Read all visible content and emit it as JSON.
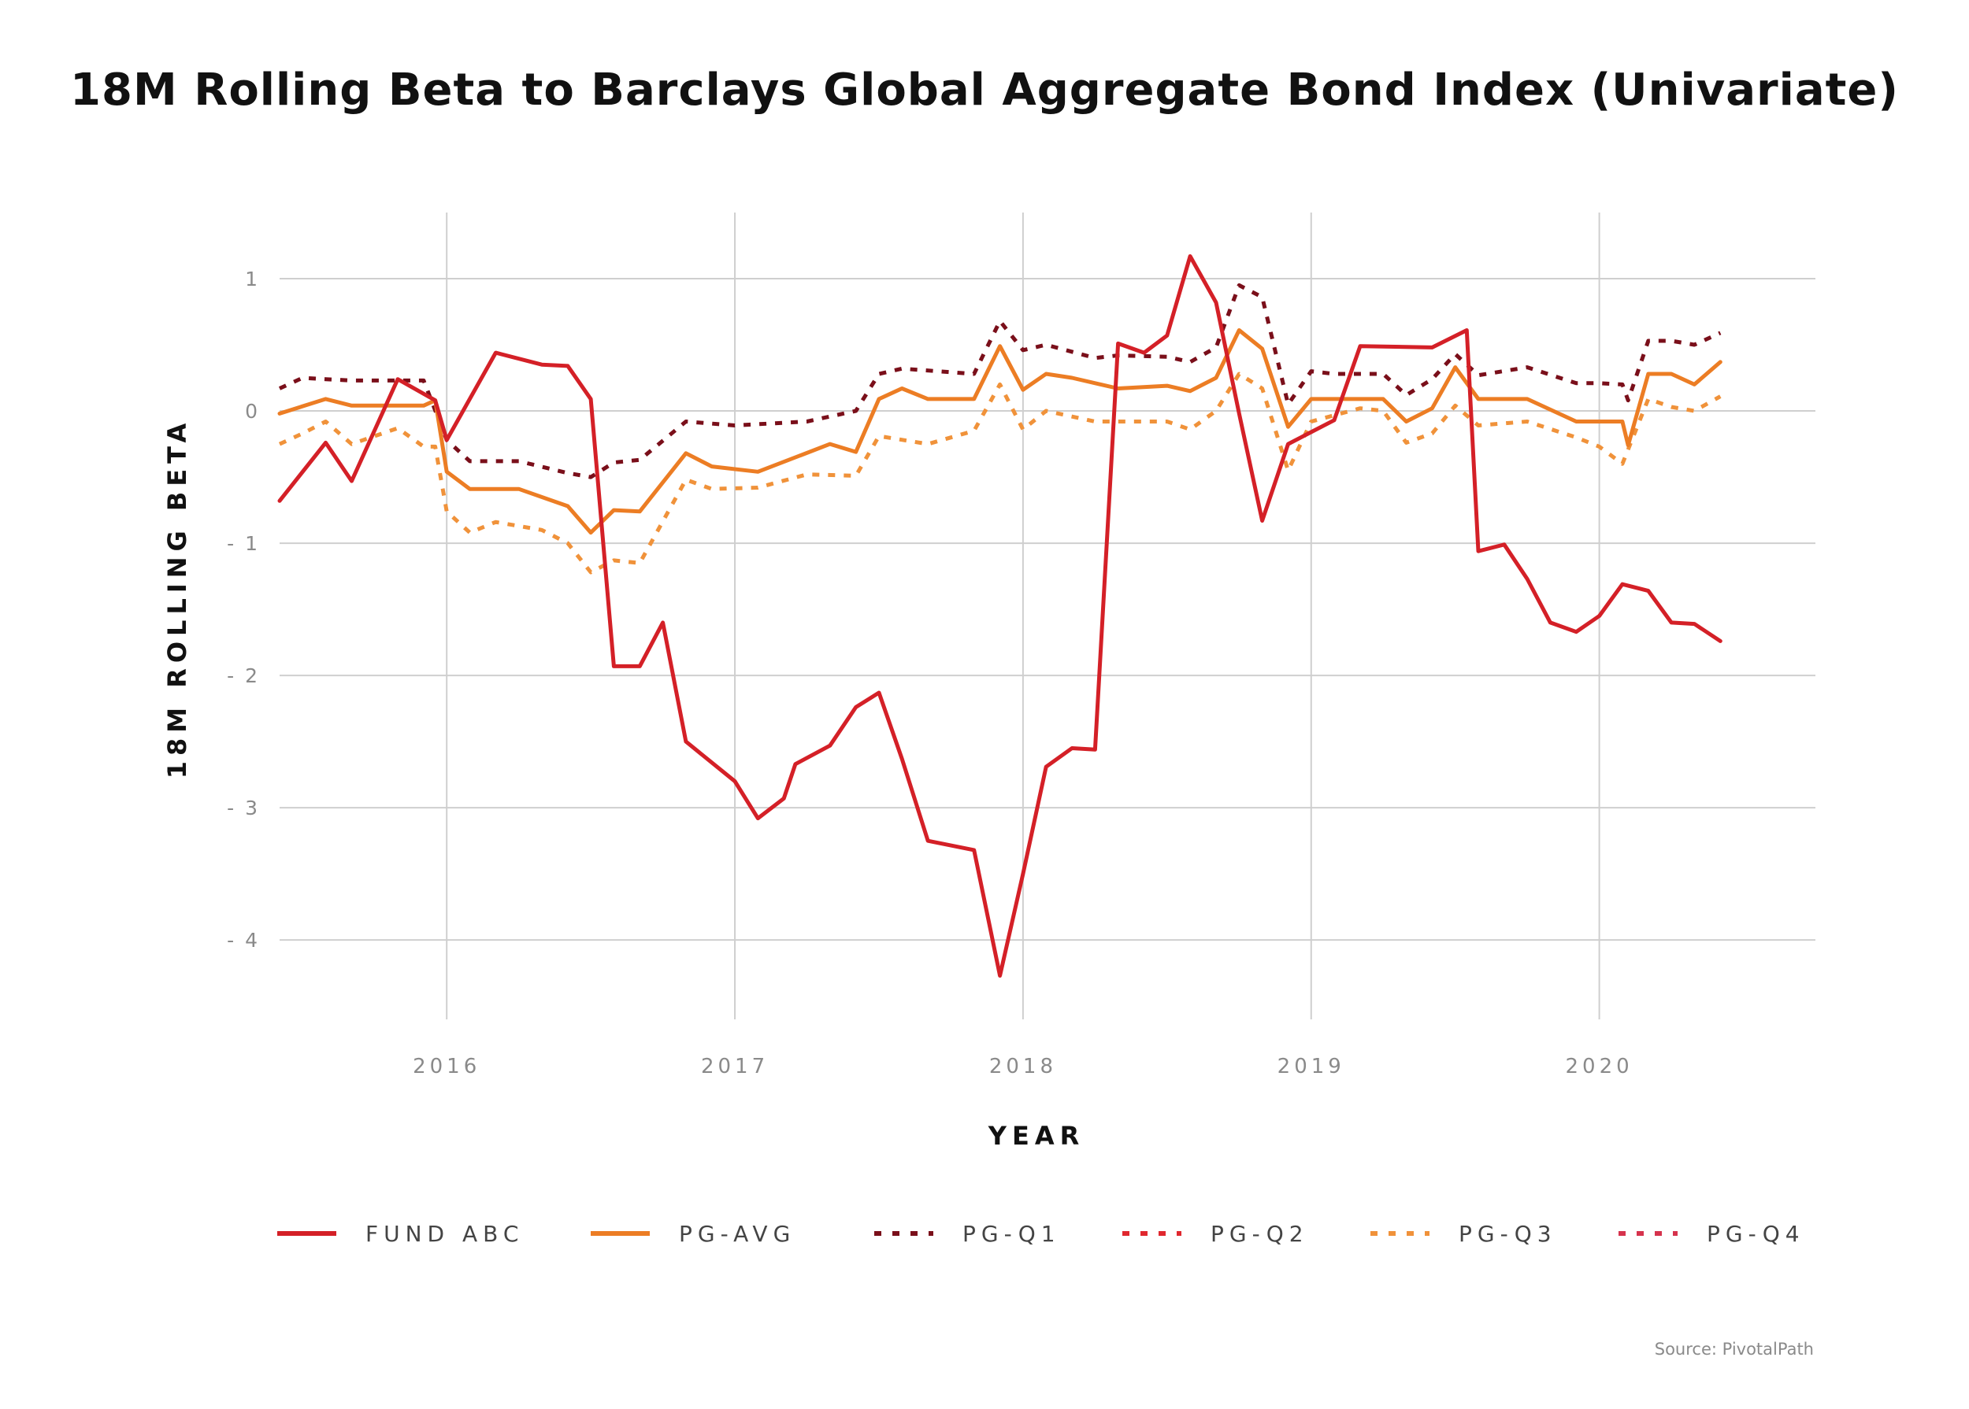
{
  "chart_data": {
    "type": "line",
    "title": "18M Rolling Beta to Barclays Global Aggregate Bond Index (Univariate)",
    "xlabel": "YEAR",
    "ylabel": "18M ROLLING BETA",
    "source": "Source: PivotalPath",
    "x_ticks": [
      {
        "value": 2016,
        "label": "2016"
      },
      {
        "value": 2017,
        "label": "2017"
      },
      {
        "value": 2018,
        "label": "2018"
      },
      {
        "value": 2019,
        "label": "2019"
      },
      {
        "value": 2020,
        "label": "2020"
      }
    ],
    "y_ticks": [
      {
        "value": 1,
        "label": "1"
      },
      {
        "value": 0,
        "label": "0"
      },
      {
        "value": -1,
        "label": "- 1"
      },
      {
        "value": -2,
        "label": "- 2"
      },
      {
        "value": -3,
        "label": "- 3"
      },
      {
        "value": -4,
        "label": "- 4"
      }
    ],
    "xlim": [
      2015.42,
      2020.75
    ],
    "ylim": [
      -4.6,
      1.5
    ],
    "grid": true,
    "legend_position": "bottom",
    "series": [
      {
        "name": "FUND ABC",
        "color": "#d42027",
        "dash": "solid",
        "points": [
          [
            2015.42,
            -0.68
          ],
          [
            2015.58,
            -0.24
          ],
          [
            2015.67,
            -0.53
          ],
          [
            2015.83,
            0.24
          ],
          [
            2015.96,
            0.08
          ],
          [
            2016.0,
            -0.22
          ],
          [
            2016.17,
            0.44
          ],
          [
            2016.33,
            0.35
          ],
          [
            2016.42,
            0.34
          ],
          [
            2016.5,
            0.09
          ],
          [
            2016.58,
            -1.93
          ],
          [
            2016.67,
            -1.93
          ],
          [
            2016.75,
            -1.6
          ],
          [
            2016.83,
            -2.5
          ],
          [
            2017.0,
            -2.8
          ],
          [
            2017.08,
            -3.08
          ],
          [
            2017.17,
            -2.93
          ],
          [
            2017.21,
            -2.67
          ],
          [
            2017.33,
            -2.53
          ],
          [
            2017.42,
            -2.24
          ],
          [
            2017.5,
            -2.13
          ],
          [
            2017.58,
            -2.63
          ],
          [
            2017.67,
            -3.25
          ],
          [
            2017.83,
            -3.32
          ],
          [
            2017.92,
            -4.27
          ],
          [
            2018.0,
            -3.5
          ],
          [
            2018.08,
            -2.69
          ],
          [
            2018.17,
            -2.55
          ],
          [
            2018.25,
            -2.56
          ],
          [
            2018.33,
            0.51
          ],
          [
            2018.42,
            0.44
          ],
          [
            2018.5,
            0.57
          ],
          [
            2018.58,
            1.17
          ],
          [
            2018.67,
            0.82
          ],
          [
            2018.75,
            -0.02
          ],
          [
            2018.83,
            -0.83
          ],
          [
            2018.92,
            -0.25
          ],
          [
            2019.0,
            -0.16
          ],
          [
            2019.08,
            -0.07
          ],
          [
            2019.17,
            0.49
          ],
          [
            2019.42,
            0.48
          ],
          [
            2019.54,
            0.61
          ],
          [
            2019.58,
            -1.06
          ],
          [
            2019.67,
            -1.01
          ],
          [
            2019.75,
            -1.27
          ],
          [
            2019.83,
            -1.6
          ],
          [
            2019.92,
            -1.67
          ],
          [
            2020.0,
            -1.55
          ],
          [
            2020.08,
            -1.31
          ],
          [
            2020.17,
            -1.36
          ],
          [
            2020.25,
            -1.6
          ],
          [
            2020.33,
            -1.61
          ],
          [
            2020.42,
            -1.74
          ]
        ]
      },
      {
        "name": "PG-AVG",
        "color": "#ec7d24",
        "dash": "solid",
        "points": [
          [
            2015.42,
            -0.02
          ],
          [
            2015.58,
            0.09
          ],
          [
            2015.67,
            0.04
          ],
          [
            2015.83,
            0.04
          ],
          [
            2015.92,
            0.04
          ],
          [
            2015.96,
            0.08
          ],
          [
            2016.0,
            -0.46
          ],
          [
            2016.08,
            -0.59
          ],
          [
            2016.25,
            -0.59
          ],
          [
            2016.42,
            -0.72
          ],
          [
            2016.5,
            -0.92
          ],
          [
            2016.58,
            -0.75
          ],
          [
            2016.67,
            -0.76
          ],
          [
            2016.83,
            -0.32
          ],
          [
            2016.92,
            -0.42
          ],
          [
            2017.08,
            -0.46
          ],
          [
            2017.33,
            -0.25
          ],
          [
            2017.42,
            -0.31
          ],
          [
            2017.5,
            0.09
          ],
          [
            2017.58,
            0.17
          ],
          [
            2017.67,
            0.09
          ],
          [
            2017.83,
            0.09
          ],
          [
            2017.92,
            0.49
          ],
          [
            2018.0,
            0.16
          ],
          [
            2018.08,
            0.28
          ],
          [
            2018.17,
            0.25
          ],
          [
            2018.33,
            0.17
          ],
          [
            2018.5,
            0.19
          ],
          [
            2018.58,
            0.15
          ],
          [
            2018.67,
            0.25
          ],
          [
            2018.75,
            0.61
          ],
          [
            2018.83,
            0.47
          ],
          [
            2018.92,
            -0.12
          ],
          [
            2019.0,
            0.09
          ],
          [
            2019.25,
            0.09
          ],
          [
            2019.33,
            -0.08
          ],
          [
            2019.42,
            0.02
          ],
          [
            2019.5,
            0.33
          ],
          [
            2019.58,
            0.09
          ],
          [
            2019.75,
            0.09
          ],
          [
            2019.92,
            -0.08
          ],
          [
            2020.0,
            -0.08
          ],
          [
            2020.08,
            -0.08
          ],
          [
            2020.1,
            -0.26
          ],
          [
            2020.17,
            0.28
          ],
          [
            2020.25,
            0.28
          ],
          [
            2020.33,
            0.2
          ],
          [
            2020.42,
            0.37
          ]
        ]
      },
      {
        "name": "PG-Q1",
        "color": "#7a0f1a",
        "dash": "dotted",
        "points": [
          [
            2015.42,
            0.17
          ],
          [
            2015.5,
            0.25
          ],
          [
            2015.58,
            0.24
          ],
          [
            2015.67,
            0.23
          ],
          [
            2015.83,
            0.23
          ],
          [
            2015.92,
            0.23
          ],
          [
            2016.0,
            -0.22
          ],
          [
            2016.08,
            -0.38
          ],
          [
            2016.25,
            -0.38
          ],
          [
            2016.42,
            -0.47
          ],
          [
            2016.5,
            -0.5
          ],
          [
            2016.58,
            -0.39
          ],
          [
            2016.67,
            -0.37
          ],
          [
            2016.83,
            -0.08
          ],
          [
            2017.0,
            -0.11
          ],
          [
            2017.25,
            -0.08
          ],
          [
            2017.42,
            0.0
          ],
          [
            2017.5,
            0.28
          ],
          [
            2017.58,
            0.32
          ],
          [
            2017.83,
            0.28
          ],
          [
            2017.92,
            0.68
          ],
          [
            2018.0,
            0.46
          ],
          [
            2018.08,
            0.5
          ],
          [
            2018.25,
            0.4
          ],
          [
            2018.33,
            0.42
          ],
          [
            2018.5,
            0.41
          ],
          [
            2018.58,
            0.37
          ],
          [
            2018.67,
            0.48
          ],
          [
            2018.75,
            0.95
          ],
          [
            2018.83,
            0.86
          ],
          [
            2018.92,
            0.05
          ],
          [
            2019.0,
            0.3
          ],
          [
            2019.08,
            0.28
          ],
          [
            2019.25,
            0.28
          ],
          [
            2019.33,
            0.12
          ],
          [
            2019.42,
            0.24
          ],
          [
            2019.5,
            0.43
          ],
          [
            2019.58,
            0.27
          ],
          [
            2019.75,
            0.33
          ],
          [
            2019.92,
            0.21
          ],
          [
            2020.0,
            0.21
          ],
          [
            2020.08,
            0.2
          ],
          [
            2020.1,
            0.08
          ],
          [
            2020.17,
            0.53
          ],
          [
            2020.25,
            0.53
          ],
          [
            2020.33,
            0.5
          ],
          [
            2020.42,
            0.59
          ]
        ]
      },
      {
        "name": "PG-Q2",
        "color": "#e0282f",
        "dash": "dotted",
        "points": []
      },
      {
        "name": "PG-Q3",
        "color": "#f0923a",
        "dash": "dotted",
        "points": [
          [
            2015.42,
            -0.25
          ],
          [
            2015.5,
            -0.17
          ],
          [
            2015.58,
            -0.08
          ],
          [
            2015.67,
            -0.25
          ],
          [
            2015.83,
            -0.13
          ],
          [
            2015.92,
            -0.27
          ],
          [
            2015.96,
            -0.27
          ],
          [
            2016.0,
            -0.76
          ],
          [
            2016.08,
            -0.92
          ],
          [
            2016.17,
            -0.84
          ],
          [
            2016.33,
            -0.9
          ],
          [
            2016.42,
            -1.0
          ],
          [
            2016.5,
            -1.22
          ],
          [
            2016.58,
            -1.13
          ],
          [
            2016.67,
            -1.15
          ],
          [
            2016.83,
            -0.52
          ],
          [
            2016.92,
            -0.59
          ],
          [
            2017.08,
            -0.58
          ],
          [
            2017.25,
            -0.48
          ],
          [
            2017.42,
            -0.49
          ],
          [
            2017.5,
            -0.19
          ],
          [
            2017.67,
            -0.25
          ],
          [
            2017.83,
            -0.15
          ],
          [
            2017.92,
            0.2
          ],
          [
            2018.0,
            -0.14
          ],
          [
            2018.08,
            0.0
          ],
          [
            2018.25,
            -0.08
          ],
          [
            2018.33,
            -0.08
          ],
          [
            2018.5,
            -0.08
          ],
          [
            2018.58,
            -0.14
          ],
          [
            2018.67,
            0.0
          ],
          [
            2018.75,
            0.28
          ],
          [
            2018.83,
            0.17
          ],
          [
            2018.92,
            -0.45
          ],
          [
            2019.0,
            -0.08
          ],
          [
            2019.17,
            0.02
          ],
          [
            2019.25,
            0.0
          ],
          [
            2019.33,
            -0.24
          ],
          [
            2019.42,
            -0.17
          ],
          [
            2019.5,
            0.04
          ],
          [
            2019.58,
            -0.11
          ],
          [
            2019.75,
            -0.08
          ],
          [
            2019.92,
            -0.2
          ],
          [
            2020.0,
            -0.27
          ],
          [
            2020.08,
            -0.4
          ],
          [
            2020.17,
            0.09
          ],
          [
            2020.25,
            0.03
          ],
          [
            2020.33,
            0.0
          ],
          [
            2020.42,
            0.11
          ]
        ]
      },
      {
        "name": "PG-Q4",
        "color": "#d6334d",
        "dash": "dotted",
        "points": []
      }
    ]
  }
}
